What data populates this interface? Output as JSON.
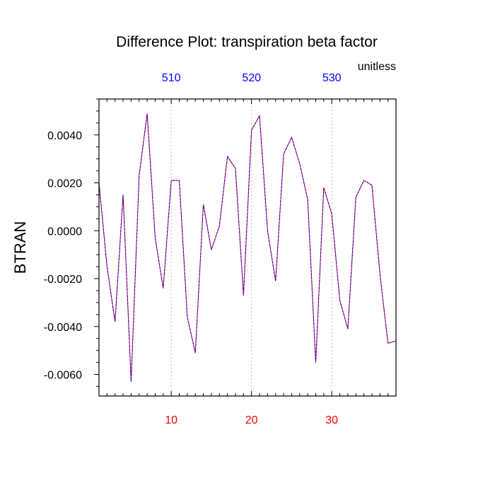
{
  "chart_data": {
    "type": "line",
    "title": "Difference Plot: transpiration beta factor",
    "units_label": "unitless",
    "ylabel": "BTRAN",
    "xlabel": "",
    "xlim": [
      1,
      38
    ],
    "ylim": [
      -0.0069,
      0.0055
    ],
    "bottom_ticks": [
      "10",
      "20",
      "30"
    ],
    "bottom_tick_values": [
      10,
      20,
      30
    ],
    "top_ticks": [
      "510",
      "520",
      "530"
    ],
    "top_tick_values": [
      10,
      20,
      30
    ],
    "y_ticks": [
      "0.0040",
      "0.0020",
      "0.0000",
      "-0.0020",
      "-0.0040",
      "-0.0060"
    ],
    "y_tick_values": [
      0.004,
      0.002,
      0.0,
      -0.002,
      -0.004,
      -0.006
    ],
    "vertical_gridlines": true,
    "colors": {
      "line_primary": "#ff0000",
      "line_secondary": "#0000ff",
      "bottom_tick_labels": "#ff0000",
      "top_tick_labels": "#0000ff",
      "axes": "#000000",
      "grid": "#aaaaaa"
    },
    "series": [
      {
        "x": [
          1,
          2,
          3,
          4,
          5,
          6,
          7,
          8,
          9,
          10,
          11,
          12,
          13,
          14,
          15,
          16,
          17,
          18,
          19,
          20,
          21,
          22,
          23,
          24,
          25,
          26,
          27,
          28,
          29,
          30,
          31,
          32,
          33,
          34,
          35,
          36,
          37,
          38
        ],
        "values": [
          0.002,
          -0.0015,
          -0.0038,
          0.0015,
          -0.0063,
          0.0023,
          0.0049,
          -0.0003,
          -0.0024,
          0.0021,
          0.0021,
          -0.0036,
          -0.0051,
          0.0011,
          -0.0008,
          0.0002,
          0.0031,
          0.0026,
          -0.0027,
          0.0042,
          0.0048,
          -0.0,
          -0.0021,
          0.0032,
          0.0039,
          0.0028,
          0.0013,
          -0.0055,
          0.0018,
          0.0007,
          -0.0029,
          -0.0041,
          0.0014,
          0.0021,
          0.0019,
          -0.0018,
          -0.0047,
          -0.0046
        ]
      }
    ]
  }
}
